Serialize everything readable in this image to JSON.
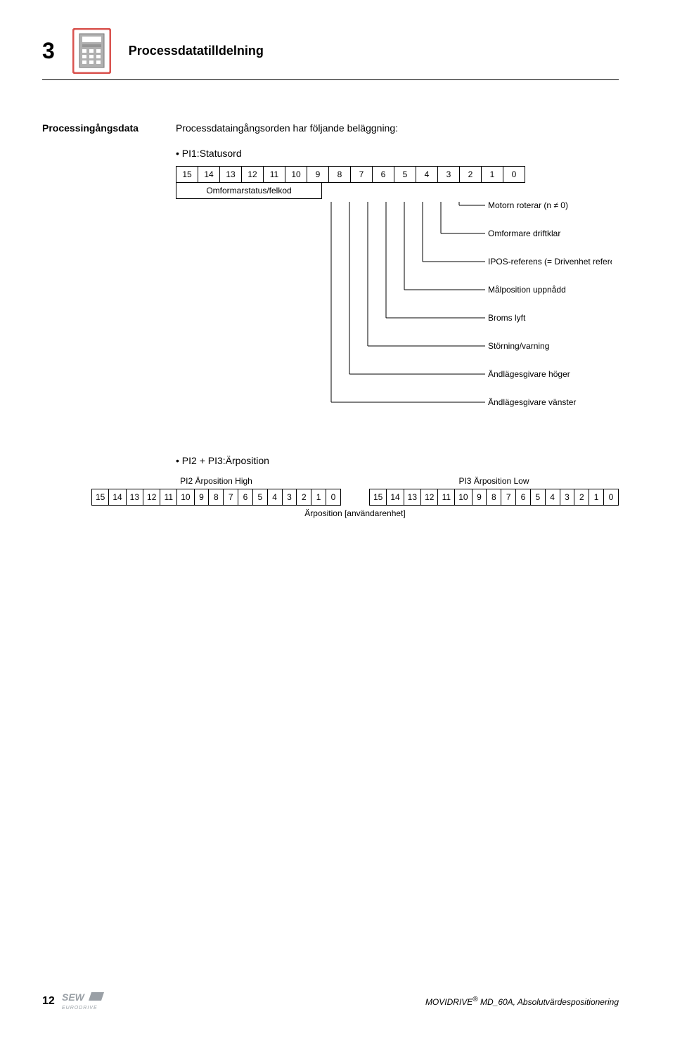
{
  "page": {
    "section_number": "3",
    "section_title": "Processdatatilldelning",
    "page_number": "12",
    "footer_text": "MOVIDRIVE® MD_60A, Absolutvärdespositionering"
  },
  "left_label": "Processingångsdata",
  "intro": "Processdataingångsorden har följande beläggning:",
  "pi1": {
    "bullet": "• PI1:Statusord",
    "bits": [
      "15",
      "14",
      "13",
      "12",
      "11",
      "10",
      "9",
      "8",
      "7",
      "6",
      "5",
      "4",
      "3",
      "2",
      "1",
      "0"
    ],
    "status_label": "Omformarstatus/felkod",
    "lines": [
      "Motorn roterar (n ≠ 0)",
      "Omformare driftklar",
      "IPOS-referens (= Drivenhet referenserad)",
      "Målposition uppnådd",
      "Broms lyft",
      "Störning/varning",
      "Ändlägesgivare höger",
      "Ändlägesgivare vänster"
    ]
  },
  "pi23": {
    "bullet": "• PI2 + PI3:Ärposition",
    "high_label": "PI2 Ärposition High",
    "low_label": "PI3 Ärposition Low",
    "bits": [
      "15",
      "14",
      "13",
      "12",
      "11",
      "10",
      "9",
      "8",
      "7",
      "6",
      "5",
      "4",
      "3",
      "2",
      "1",
      "0"
    ],
    "footer": "Ärposition [användarenhet]"
  },
  "colors": {
    "icon_border": "#d9534f",
    "icon_body": "#b0b0b0",
    "text": "#000000",
    "line": "#000000",
    "logo_grey": "#9aa0a6"
  }
}
